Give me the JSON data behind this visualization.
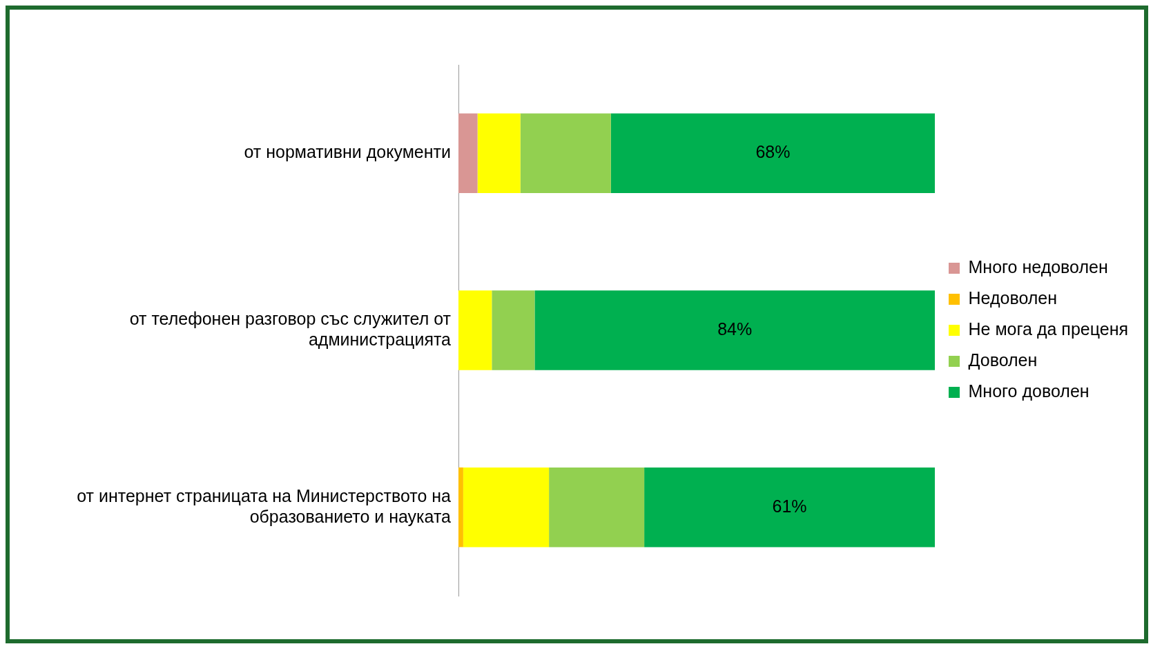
{
  "chart_data": {
    "type": "bar",
    "orientation": "horizontal",
    "stacked": true,
    "legend": "right",
    "grid": false,
    "categories": [
      "от нормативни документи",
      "от телефонен разговор със служител от администрацията",
      "от интернет страницата на Министерството на образованието и науката"
    ],
    "series": [
      {
        "name": "Много недоволен",
        "color": "#d99694",
        "values": [
          4,
          0,
          0
        ]
      },
      {
        "name": "Недоволен",
        "color": "#ffc000",
        "values": [
          0,
          0,
          1
        ]
      },
      {
        "name": "Не мога да преценя",
        "color": "#ffff00",
        "values": [
          9,
          7,
          18
        ]
      },
      {
        "name": "Доволен",
        "color": "#92d050",
        "values": [
          19,
          9,
          20
        ]
      },
      {
        "name": "Много доволен",
        "color": "#00b050",
        "values": [
          68,
          84,
          61
        ],
        "value_labels": [
          "68%",
          "84%",
          "61%"
        ]
      }
    ]
  }
}
